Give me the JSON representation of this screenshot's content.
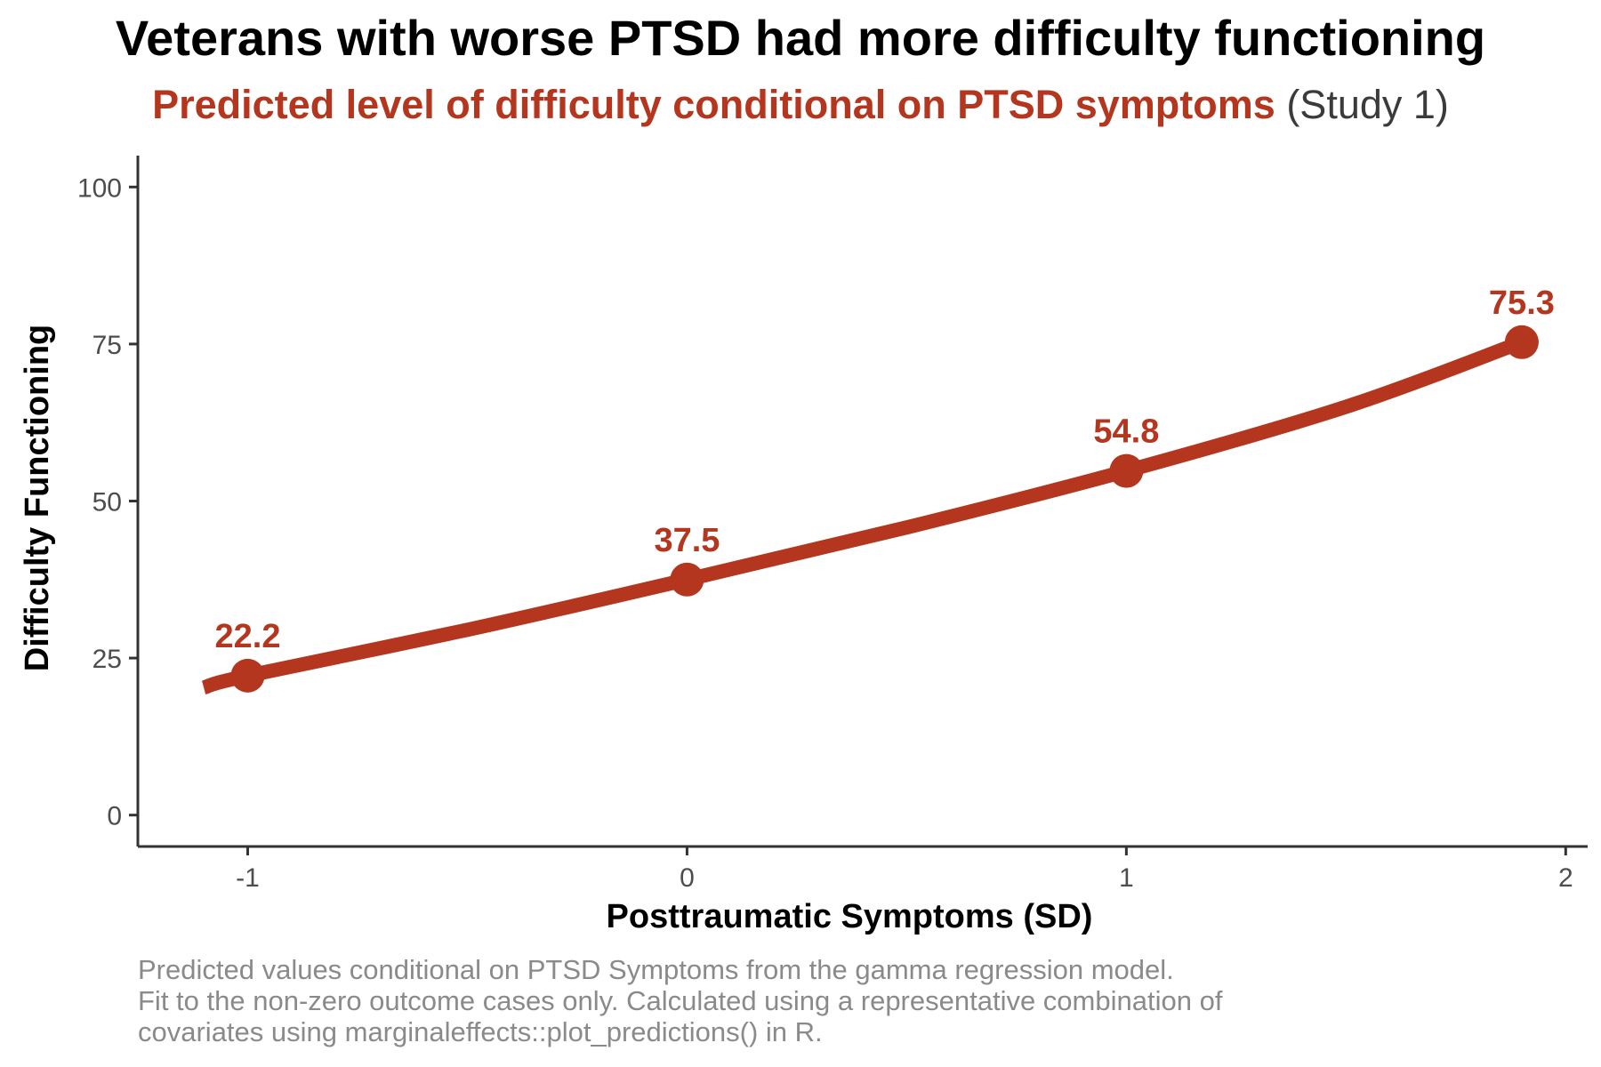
{
  "title": "Veterans with worse PTSD had more difficulty functioning",
  "subtitle": {
    "main": "Predicted level of difficulty conditional on PTSD symptoms",
    "suffix": "(Study 1)"
  },
  "caption": [
    "Predicted values conditional on PTSD Symptoms from the gamma regression model.",
    "Fit to the non-zero outcome cases only. Calculated using a representative combination of",
    "covariates using marginaleffects::plot_predictions() in R."
  ],
  "colors": {
    "line": "#B5361F",
    "axis": "#333333",
    "tick_text": "#4d4d4d"
  },
  "chart_data": {
    "type": "line",
    "title": "Veterans with worse PTSD had more difficulty functioning",
    "subtitle": "Predicted level of difficulty conditional on PTSD symptoms (Study 1)",
    "xlabel": "Posttraumatic Symptoms (SD)",
    "ylabel": "Difficulty Functioning",
    "xlim": [
      -1.25,
      2.05
    ],
    "ylim": [
      -5,
      105
    ],
    "x_ticks": [
      -1,
      0,
      1,
      2
    ],
    "x_tick_labels": [
      "-1",
      "0",
      "1",
      "2"
    ],
    "y_ticks": [
      0,
      25,
      50,
      75,
      100
    ],
    "y_tick_labels": [
      "0",
      "25",
      "50",
      "75",
      "100"
    ],
    "grid": false,
    "legend": "none",
    "series": [
      {
        "curve": {
          "x": [
            -1.1,
            -1.0,
            -0.5,
            0.0,
            0.5,
            1.0,
            1.5,
            1.9
          ],
          "y": [
            20.3,
            22.2,
            29.5,
            37.5,
            45.8,
            54.8,
            65.0,
            75.3
          ]
        },
        "points": {
          "x": [
            -1,
            0,
            1,
            1.9
          ],
          "y": [
            22.2,
            37.5,
            54.8,
            75.3
          ],
          "labels": [
            "22.2",
            "37.5",
            "54.8",
            "75.3"
          ]
        }
      }
    ]
  }
}
